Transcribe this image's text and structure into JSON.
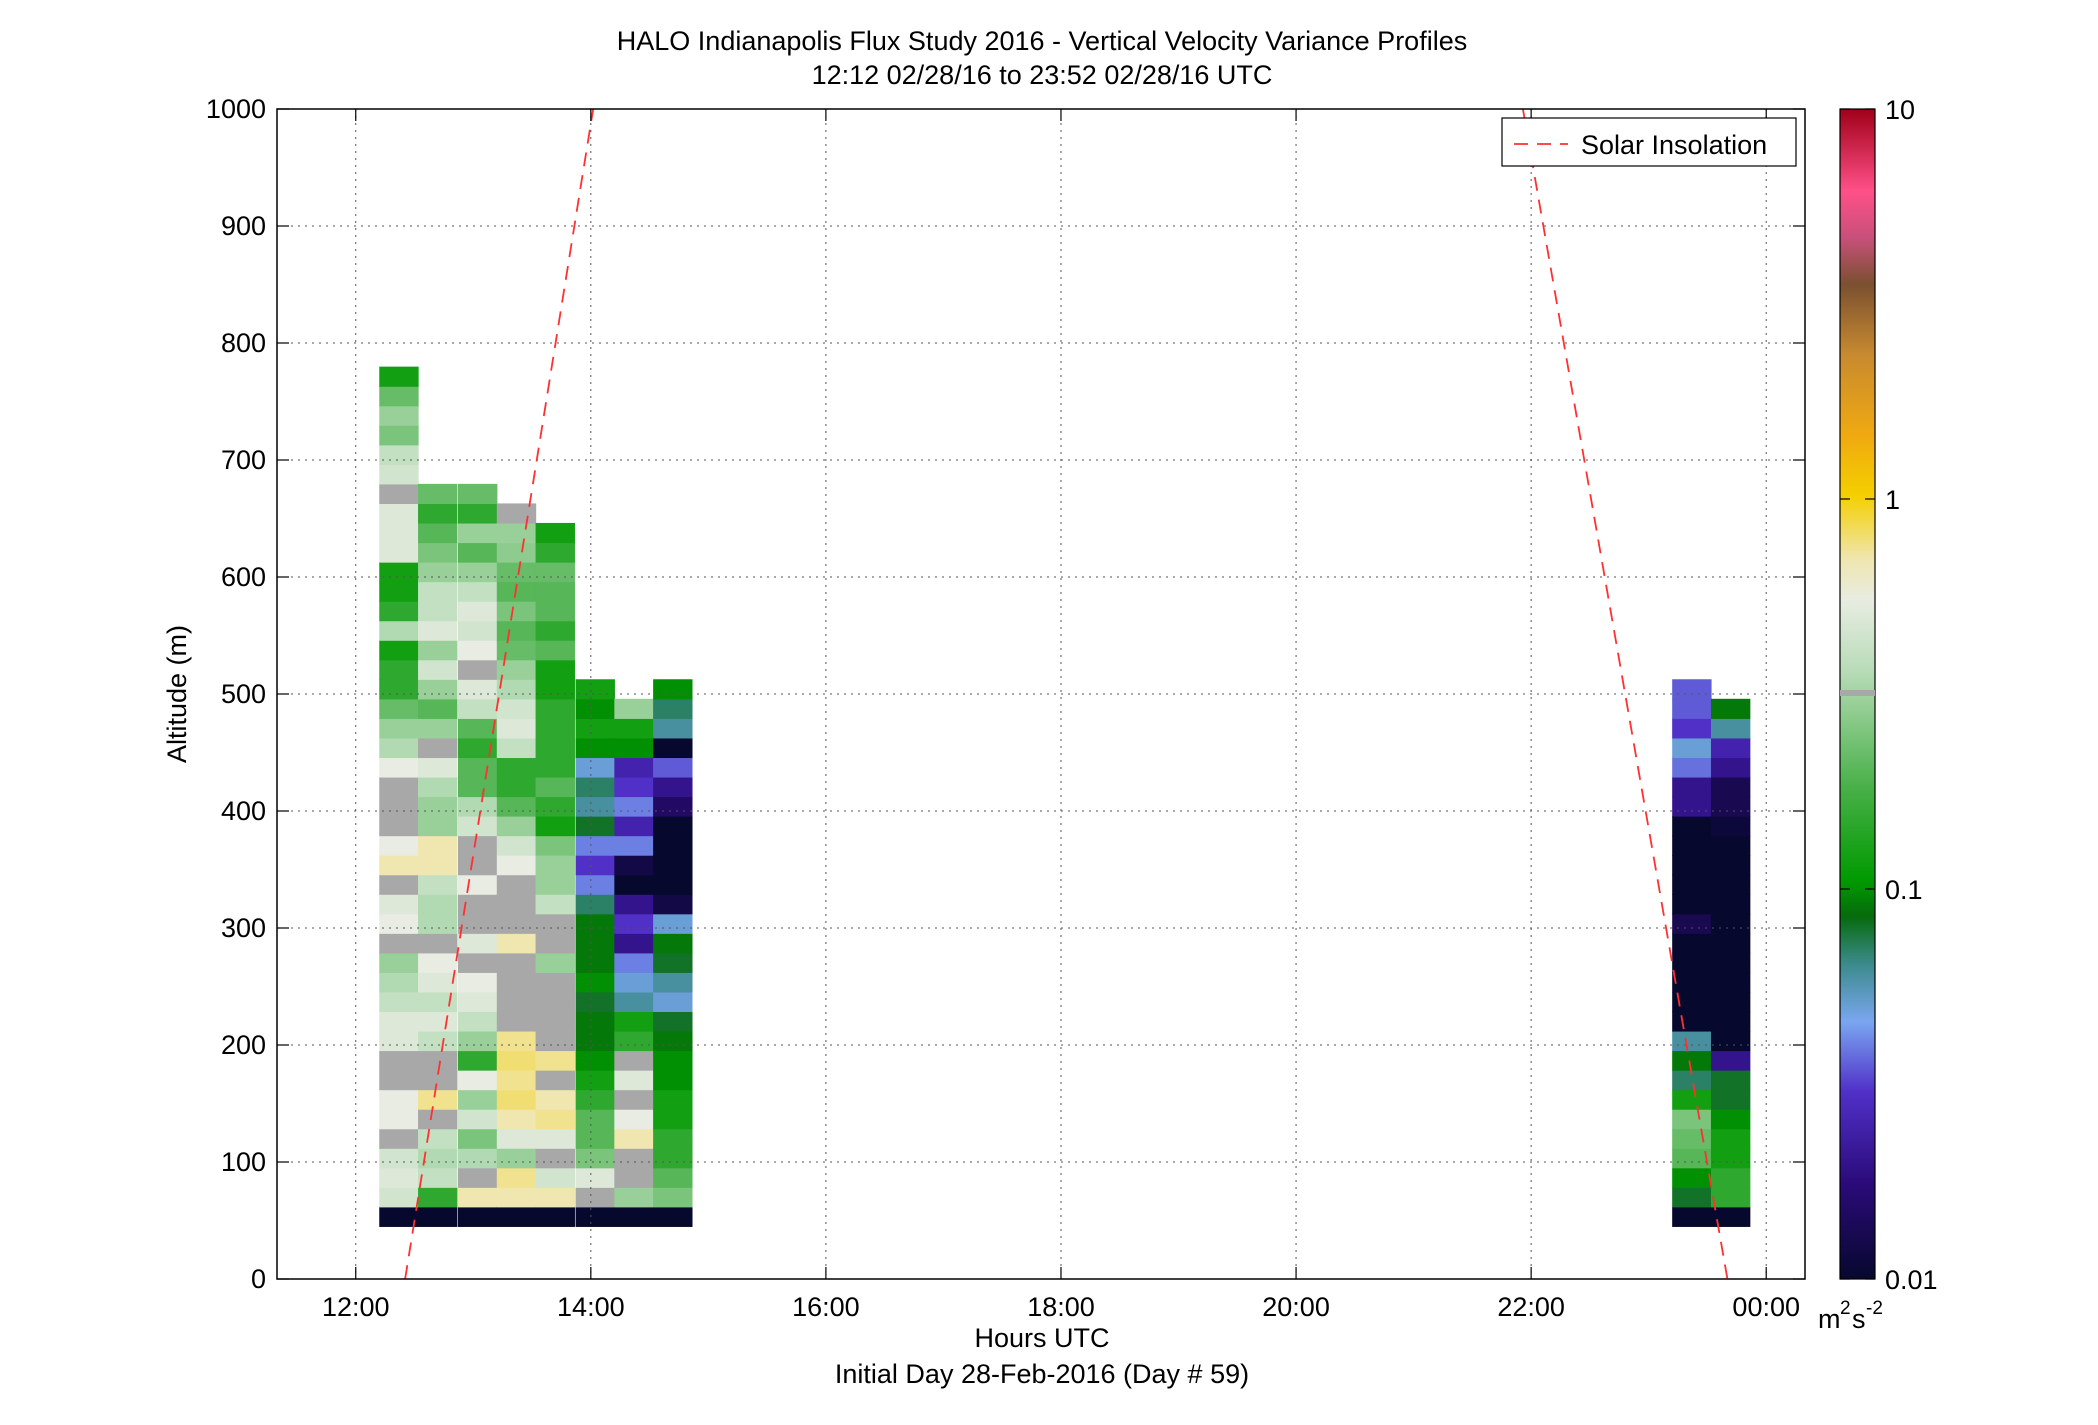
{
  "chart_data": {
    "type": "heatmap",
    "title": "HALO Indianapolis Flux Study 2016 - Vertical Velocity Variance Profiles",
    "subtitle": "12:12 02/28/16 to 23:52 02/28/16  UTC",
    "xlabel": "Hours UTC",
    "xlabel2": "Initial Day 28-Feb-2016 (Day # 59)",
    "ylabel": "Altitude (m)",
    "x_range_hours": [
      11.33,
      24.33
    ],
    "y_range_m": [
      0,
      1000
    ],
    "x_ticks": [
      {
        "value": 12,
        "label": "12:00"
      },
      {
        "value": 14,
        "label": "14:00"
      },
      {
        "value": 16,
        "label": "16:00"
      },
      {
        "value": 18,
        "label": "18:00"
      },
      {
        "value": 20,
        "label": "20:00"
      },
      {
        "value": 22,
        "label": "22:00"
      },
      {
        "value": 24,
        "label": "00:00"
      }
    ],
    "y_ticks": [
      {
        "value": 0,
        "label": "0"
      },
      {
        "value": 100,
        "label": "100"
      },
      {
        "value": 200,
        "label": "200"
      },
      {
        "value": 300,
        "label": "300"
      },
      {
        "value": 400,
        "label": "400"
      },
      {
        "value": 500,
        "label": "500"
      },
      {
        "value": 600,
        "label": "600"
      },
      {
        "value": 700,
        "label": "700"
      },
      {
        "value": 800,
        "label": "800"
      },
      {
        "value": 900,
        "label": "900"
      },
      {
        "value": 1000,
        "label": "1000"
      }
    ],
    "grid": true,
    "legend": {
      "position": "top-right",
      "entries": [
        {
          "name": "Solar Insolation",
          "style": "dashed",
          "color": "#ff3030"
        }
      ]
    },
    "colorbar": {
      "scale": "log",
      "range": [
        0.01,
        10
      ],
      "unit_base": "m",
      "unit_exp1": "2",
      "unit_mid": "s",
      "unit_exp2": "-2",
      "ticks": [
        {
          "value": 0.01,
          "label": "0.01"
        },
        {
          "value": 0.1,
          "label": "0.1"
        },
        {
          "value": 1,
          "label": "1"
        },
        {
          "value": 10,
          "label": "10"
        }
      ]
    },
    "bin_height_m": 16.7,
    "column_width_hours": 0.33,
    "solar_insolation_lines": [
      {
        "x0": 12.42,
        "y0": 0,
        "x1": 14.02,
        "y1": 1000
      },
      {
        "x0": 21.93,
        "y0": 1000,
        "x1": 23.67,
        "y1": 0
      }
    ],
    "columns": [
      {
        "t": 12.2,
        "base": 45,
        "values": [
          0.01,
          0.45,
          0.5,
          0.45,
          0.6,
          0.55,
          0.55,
          0.6,
          0.6,
          0.5,
          0.5,
          0.4,
          0.35,
          0.3,
          0.6,
          0.55,
          0.5,
          0.6,
          0.7,
          0.55,
          0.6,
          0.65,
          0.6,
          0.55,
          0.35,
          0.3,
          0.22,
          0.15,
          0.15,
          0.12,
          0.35,
          0.15,
          0.12,
          0.12,
          0.5,
          0.5,
          0.5,
          0.6,
          0.45,
          0.4,
          0.25,
          0.3,
          0.22,
          0.12
        ]
      },
      {
        "t": 12.53,
        "base": 45,
        "values": [
          0.01,
          0.15,
          0.4,
          0.35,
          0.4,
          0.65,
          0.75,
          0.65,
          0.6,
          0.4,
          0.5,
          0.4,
          0.5,
          0.55,
          0.6,
          0.35,
          0.35,
          0.4,
          0.7,
          0.7,
          0.3,
          0.3,
          0.35,
          0.5,
          0.6,
          0.3,
          0.2,
          0.3,
          0.45,
          0.3,
          0.5,
          0.4,
          0.4,
          0.3,
          0.25,
          0.2,
          0.15,
          0.22
        ]
      },
      {
        "t": 12.87,
        "base": 45,
        "values": [
          0.01,
          0.7,
          0.6,
          0.35,
          0.25,
          0.45,
          0.3,
          0.55,
          0.15,
          0.3,
          0.4,
          0.5,
          0.55,
          0.6,
          0.5,
          0.6,
          0.6,
          0.55,
          0.6,
          0.6,
          0.45,
          0.35,
          0.2,
          0.2,
          0.15,
          0.2,
          0.4,
          0.5,
          0.6,
          0.55,
          0.45,
          0.5,
          0.4,
          0.3,
          0.2,
          0.3,
          0.15,
          0.22
        ]
      },
      {
        "t": 13.2,
        "base": 45,
        "values": [
          0.01,
          0.7,
          0.75,
          0.3,
          0.5,
          0.7,
          0.8,
          0.75,
          0.8,
          0.75,
          0.6,
          0.65,
          0.6,
          0.6,
          0.7,
          0.65,
          0.6,
          0.65,
          0.55,
          0.45,
          0.3,
          0.2,
          0.15,
          0.15,
          0.4,
          0.5,
          0.45,
          0.35,
          0.3,
          0.22,
          0.2,
          0.25,
          0.2,
          0.22,
          0.28,
          0.3,
          0.6
        ]
      },
      {
        "t": 13.53,
        "base": 45,
        "values": [
          0.01,
          0.7,
          0.45,
          0.6,
          0.5,
          0.75,
          0.7,
          0.65,
          0.75,
          0.65,
          0.6,
          0.65,
          0.6,
          0.3,
          0.6,
          0.6,
          0.4,
          0.3,
          0.3,
          0.25,
          0.12,
          0.15,
          0.2,
          0.15,
          0.15,
          0.15,
          0.15,
          0.12,
          0.12,
          0.2,
          0.15,
          0.2,
          0.2,
          0.22,
          0.15,
          0.12
        ]
      },
      {
        "t": 13.87,
        "base": 45,
        "values": [
          0.01,
          0.6,
          0.5,
          0.25,
          0.2,
          0.2,
          0.15,
          0.12,
          0.1,
          0.09,
          0.09,
          0.08,
          0.1,
          0.09,
          0.09,
          0.09,
          0.07,
          0.04,
          0.03,
          0.04,
          0.08,
          0.06,
          0.07,
          0.05,
          0.1,
          0.12,
          0.1,
          0.12
        ]
      },
      {
        "t": 14.2,
        "base": 45,
        "values": [
          0.01,
          0.3,
          0.6,
          0.65,
          0.7,
          0.55,
          0.6,
          0.5,
          0.6,
          0.15,
          0.12,
          0.06,
          0.05,
          0.04,
          0.02,
          0.03,
          0.02,
          0.01,
          0.012,
          0.04,
          0.025,
          0.04,
          0.03,
          0.025,
          0.1,
          0.12,
          0.3
        ]
      },
      {
        "t": 14.53,
        "base": 45,
        "values": [
          0.01,
          0.25,
          0.2,
          0.15,
          0.15,
          0.12,
          0.12,
          0.1,
          0.1,
          0.09,
          0.08,
          0.05,
          0.06,
          0.08,
          0.09,
          0.05,
          0.012,
          0.01,
          0.01,
          0.01,
          0.01,
          0.015,
          0.02,
          0.035,
          0.01,
          0.06,
          0.07,
          0.1
        ]
      },
      {
        "t": 23.2,
        "base": 45,
        "values": [
          0.01,
          0.08,
          0.1,
          0.2,
          0.22,
          0.25,
          0.12,
          0.07,
          0.09,
          0.06,
          0.01,
          0.01,
          0.01,
          0.01,
          0.01,
          0.013,
          0.01,
          0.01,
          0.01,
          0.01,
          0.01,
          0.02,
          0.02,
          0.038,
          0.05,
          0.03,
          0.035,
          0.035
        ]
      },
      {
        "t": 23.53,
        "base": 45,
        "values": [
          0.01,
          0.15,
          0.15,
          0.12,
          0.12,
          0.1,
          0.08,
          0.08,
          0.02,
          0.01,
          0.01,
          0.01,
          0.01,
          0.01,
          0.01,
          0.01,
          0.01,
          0.01,
          0.01,
          0.01,
          0.011,
          0.013,
          0.013,
          0.02,
          0.025,
          0.06,
          0.09
        ]
      }
    ]
  }
}
